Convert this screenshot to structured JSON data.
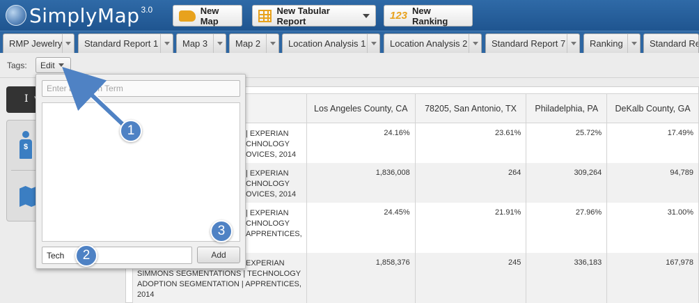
{
  "app": {
    "name": "SimplyMap",
    "version": "3.0"
  },
  "toolbar": {
    "new_map_label": "New Map",
    "new_tabular_report_label": "New Tabular Report",
    "new_ranking_label": "New Ranking",
    "new_ranking_icon_text": "123"
  },
  "tabs": [
    {
      "label": "RMP Jewelry"
    },
    {
      "label": "Standard Report 1"
    },
    {
      "label": "Map 3"
    },
    {
      "label": "Map 2"
    },
    {
      "label": "Location Analysis 1"
    },
    {
      "label": "Location Analysis 2"
    },
    {
      "label": "Standard Report 7"
    },
    {
      "label": "Ranking"
    },
    {
      "label": "Standard Rep"
    }
  ],
  "tags": {
    "label": "Tags:",
    "edit_label": "Edit"
  },
  "sidebar": {
    "header_text": "I w"
  },
  "popup": {
    "search_placeholder": "Enter a Search Term",
    "tag_input_value": "Tech",
    "add_label": "Add"
  },
  "table": {
    "columns": [
      "Los Angeles County, CA",
      "78205, San Antonio, TX",
      "Philadelphia, PA",
      "DeKalb County, GA"
    ],
    "rows": [
      {
        "desc": [
          "| EXPERIAN",
          "CHNOLOGY",
          "OVICES, 2014"
        ],
        "values": [
          "24.16%",
          "23.61%",
          "25.72%",
          "17.49%"
        ]
      },
      {
        "desc": [
          "| EXPERIAN",
          "CHNOLOGY",
          "OVICES, 2014"
        ],
        "values": [
          "1,836,008",
          "264",
          "309,264",
          "94,789"
        ]
      },
      {
        "desc": [
          "| EXPERIAN",
          "CHNOLOGY",
          "APPRENTICES,"
        ],
        "values": [
          "24.45%",
          "21.91%",
          "27.96%",
          "31.00%"
        ]
      },
      {
        "desc": [
          "EXPERIAN",
          "SIMMONS SEGMENTATIONS | TECHNOLOGY",
          "ADOPTION SEGMENTATION | APPRENTICES,",
          "2014"
        ],
        "values": [
          "1,858,376",
          "245",
          "336,183",
          "167,978"
        ]
      }
    ]
  },
  "annotations": {
    "step1": "1",
    "step2": "2",
    "step3": "3"
  },
  "colors": {
    "header_blue": "#2f6aa7",
    "accent_orange": "#e8a21d",
    "annotation_blue": "#4f82c4"
  }
}
